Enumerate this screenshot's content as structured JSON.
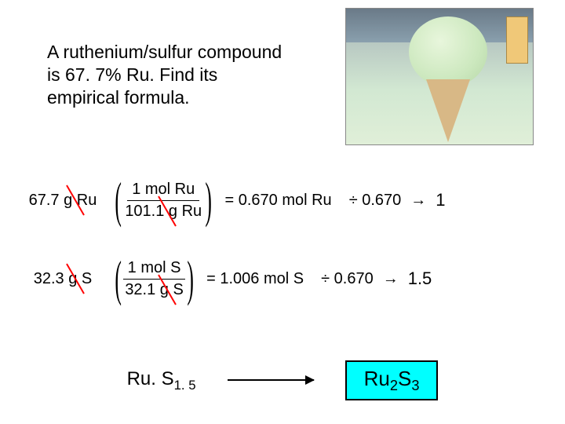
{
  "prompt": "A ruthenium/sulfur compound is 67. 7% Ru. Find its empirical formula.",
  "calc": {
    "ru": {
      "mass": "67.7 g Ru",
      "frac_num": "1 mol Ru",
      "frac_den": "101.1 g Ru",
      "eq": "= 0.670 mol Ru",
      "div": "÷  0.670",
      "arrow": "→",
      "result": "1"
    },
    "s": {
      "mass": "32.3 g S",
      "frac_num": "1 mol S",
      "frac_den": "32.1 g S",
      "eq": "= 1.006 mol S",
      "div": "÷  0.670",
      "arrow": "→",
      "result": "1.5"
    }
  },
  "intermediate": {
    "base": "Ru. S",
    "sub": "1. 5"
  },
  "final": {
    "el1": "Ru",
    "sub1": "2",
    "el2": "S",
    "sub2": "3"
  },
  "colors": {
    "highlight_bg": "#00ffff",
    "strike": "#ff0000",
    "text": "#000000",
    "page_bg": "#ffffff"
  }
}
